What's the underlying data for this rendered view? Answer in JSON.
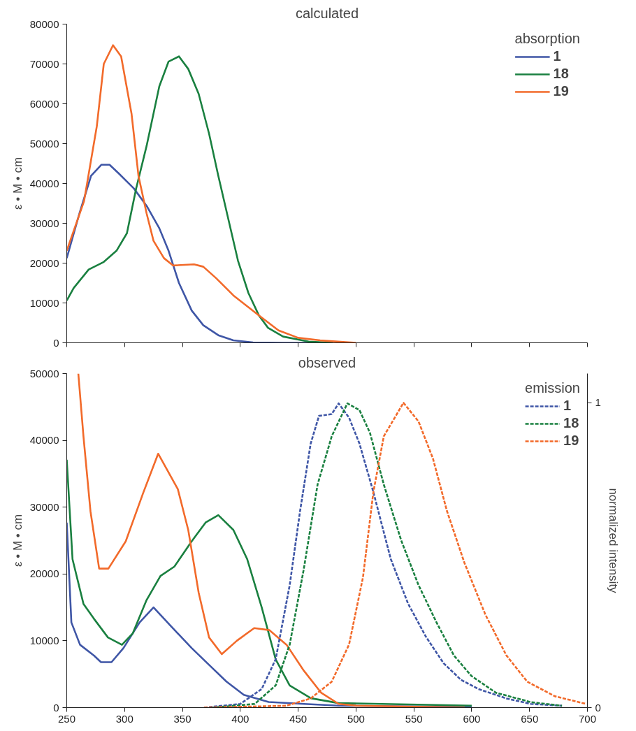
{
  "chart_data": [
    {
      "type": "line",
      "title": "calculated",
      "ylabel": "ε • M • cm",
      "xlim": [
        250,
        700
      ],
      "xticks": [
        250,
        300,
        350,
        400,
        450,
        500,
        550,
        600,
        650,
        700
      ],
      "ylim": [
        0,
        80000
      ],
      "yticks": [
        0,
        10000,
        20000,
        30000,
        40000,
        50000,
        60000,
        70000,
        80000
      ],
      "tick_labels": "y",
      "grid": false,
      "legend": "top right",
      "legend_title": "absorption",
      "line_style": "solid",
      "marker": "none",
      "series": [
        {
          "name": "1",
          "color": "#3f56a6",
          "x": [
            250,
            261,
            271,
            280,
            287,
            295,
            308,
            319,
            330,
            338,
            347,
            358,
            368,
            381,
            394,
            411,
            437,
            459
          ],
          "values": [
            21250,
            32500,
            41900,
            44700,
            44700,
            42500,
            38750,
            34400,
            28750,
            23100,
            15000,
            8100,
            4400,
            1900,
            600,
            100,
            0,
            0
          ]
        },
        {
          "name": "18",
          "color": "#1a8040",
          "x": [
            250,
            256,
            269,
            282,
            293,
            302,
            310,
            319,
            330,
            338,
            347,
            355,
            364,
            373,
            381,
            390,
            398,
            407,
            416,
            424,
            437,
            459,
            480
          ],
          "values": [
            10600,
            13750,
            18400,
            20300,
            23100,
            27500,
            38750,
            49400,
            64400,
            70600,
            71900,
            68750,
            62500,
            52500,
            41900,
            30600,
            20600,
            12500,
            6900,
            3750,
            1560,
            300,
            0
          ]
        },
        {
          "name": "19",
          "color": "#f26a2a",
          "x": [
            250,
            265,
            276,
            282,
            290,
            297,
            306,
            312,
            319,
            325,
            334,
            342,
            360,
            368,
            379,
            394,
            416,
            433,
            450,
            469,
            500
          ],
          "values": [
            23100,
            35600,
            54400,
            70000,
            74700,
            71900,
            57500,
            41900,
            32500,
            25600,
            21250,
            19400,
            19700,
            19100,
            16250,
            11900,
            6900,
            3100,
            1250,
            600,
            0
          ]
        }
      ]
    },
    {
      "type": "line",
      "title": "observed",
      "ylabel": "ε • M • cm",
      "y2label": "normalized intensity",
      "xlim": [
        250,
        700
      ],
      "xticks": [
        250,
        300,
        350,
        400,
        450,
        500,
        550,
        600,
        650,
        700
      ],
      "ylim": [
        0,
        50000
      ],
      "yticks": [
        0,
        10000,
        20000,
        30000,
        40000,
        50000
      ],
      "y2lim": [
        0,
        1.096
      ],
      "y2ticks": [
        0,
        1
      ],
      "grid": false,
      "legend": "top right",
      "legend_title": "emission",
      "marker": "none",
      "series": [
        {
          "color": "#3f56a6",
          "x": [
            250,
            254,
            261.5,
            273.5,
            279.6,
            288.7,
            299,
            313,
            325,
            340,
            358,
            373,
            388,
            403,
            424.5,
            455,
            485,
            600
          ],
          "values": [
            27700,
            12750,
            9400,
            7800,
            6800,
            6800,
            8900,
            12750,
            15000,
            12200,
            8900,
            6400,
            3900,
            1900,
            830,
            550,
            280,
            100
          ],
          "line_style": "solid"
        },
        {
          "color": "#1a8040",
          "x": [
            250,
            255,
            264.5,
            273.5,
            285.6,
            297.7,
            307,
            319,
            331,
            343,
            358,
            370,
            381,
            394,
            406,
            418.5,
            430.6,
            442.7,
            461,
            485,
            600
          ],
          "values": [
            37100,
            22200,
            15500,
            13300,
            10500,
            9400,
            11100,
            16100,
            19700,
            21100,
            24900,
            27700,
            28800,
            26600,
            22200,
            15000,
            7200,
            3300,
            1400,
            670,
            280
          ],
          "line_style": "solid"
        },
        {
          "color": "#f26a2a",
          "x": [
            260,
            264.5,
            270.5,
            278,
            286,
            301,
            316,
            329,
            346,
            355,
            364,
            373,
            384,
            397,
            412,
            425,
            440,
            455,
            470,
            485,
            500,
            594
          ],
          "values": [
            50000,
            40500,
            29400,
            20800,
            20800,
            24900,
            32100,
            38000,
            32700,
            26600,
            17200,
            10500,
            8000,
            10000,
            11900,
            11600,
            9400,
            5500,
            2200,
            550,
            280,
            0
          ],
          "line_style": "solid"
        },
        {
          "name": "1",
          "color": "#3f56a6",
          "axis": "y2",
          "line_style": "dashed",
          "x": [
            368.7,
            400,
            418.5,
            430.6,
            442.7,
            451.7,
            460.8,
            468,
            479,
            485,
            494,
            503,
            515,
            530,
            545,
            560.5,
            575.6,
            590.7,
            605.8,
            630,
            651,
            678
          ],
          "values": [
            0,
            0.012,
            0.061,
            0.159,
            0.402,
            0.646,
            0.866,
            0.957,
            0.963,
            0.998,
            0.951,
            0.866,
            0.707,
            0.488,
            0.341,
            0.232,
            0.146,
            0.091,
            0.061,
            0.03,
            0.012,
            0.006
          ]
        },
        {
          "name": "18",
          "color": "#1a8040",
          "axis": "y2",
          "line_style": "dashed",
          "x": [
            376,
            412.5,
            430.6,
            442.7,
            454.7,
            466.8,
            479,
            492.5,
            503,
            512,
            524,
            539,
            554,
            569.5,
            584.6,
            599.7,
            620.8,
            651,
            678
          ],
          "values": [
            0,
            0.012,
            0.073,
            0.207,
            0.451,
            0.732,
            0.89,
            0.998,
            0.976,
            0.902,
            0.732,
            0.549,
            0.402,
            0.28,
            0.171,
            0.104,
            0.049,
            0.018,
            0.006
          ]
        },
        {
          "name": "19",
          "color": "#f26a2a",
          "axis": "y2",
          "line_style": "dashed",
          "x": [
            368.7,
            439.7,
            460.8,
            479,
            494,
            506,
            515,
            524,
            541,
            554,
            566.5,
            578.5,
            593.6,
            611.8,
            630,
            648,
            672,
            699
          ],
          "values": [
            0,
            0.006,
            0.03,
            0.085,
            0.207,
            0.427,
            0.707,
            0.89,
            1.0,
            0.939,
            0.817,
            0.646,
            0.476,
            0.305,
            0.171,
            0.085,
            0.037,
            0.012
          ]
        }
      ]
    }
  ]
}
